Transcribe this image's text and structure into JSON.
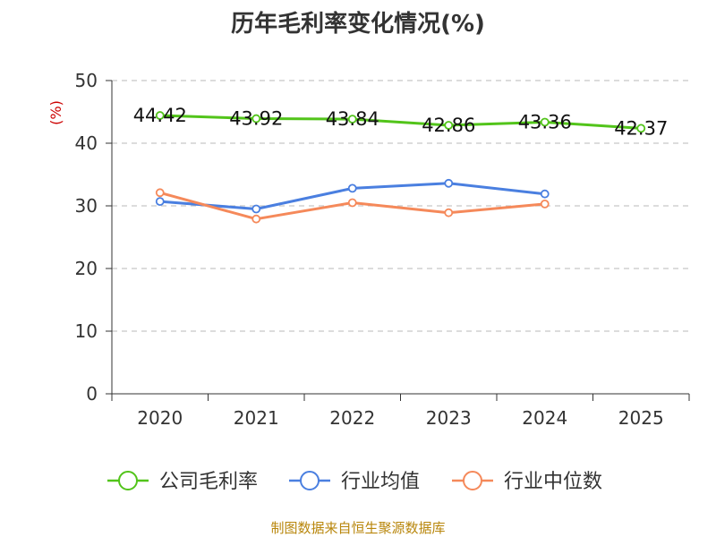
{
  "footer": "制图数据来自恒生聚源数据库",
  "chart_data": {
    "type": "line",
    "title": "历年毛利率变化情况(%)",
    "unit_label": "(%)",
    "categories": [
      "2020",
      "2021",
      "2022",
      "2023",
      "2024",
      "2025"
    ],
    "ylim": [
      0,
      50
    ],
    "yticks": [
      0,
      10,
      20,
      30,
      40,
      50
    ],
    "grid": true,
    "legend_position": "bottom",
    "series": [
      {
        "name": "公司毛利率",
        "color": "#52c41a",
        "labels": true,
        "values": [
          44.42,
          43.92,
          43.84,
          42.86,
          43.36,
          42.37
        ]
      },
      {
        "name": "行业均值",
        "color": "#4a7fe0",
        "labels": false,
        "values": [
          30.7,
          29.5,
          32.8,
          33.6,
          31.9,
          null
        ]
      },
      {
        "name": "行业中位数",
        "color": "#f5895a",
        "labels": false,
        "values": [
          32.1,
          27.9,
          30.5,
          28.9,
          30.3,
          null
        ]
      }
    ],
    "unit_color": "#cc0000"
  }
}
